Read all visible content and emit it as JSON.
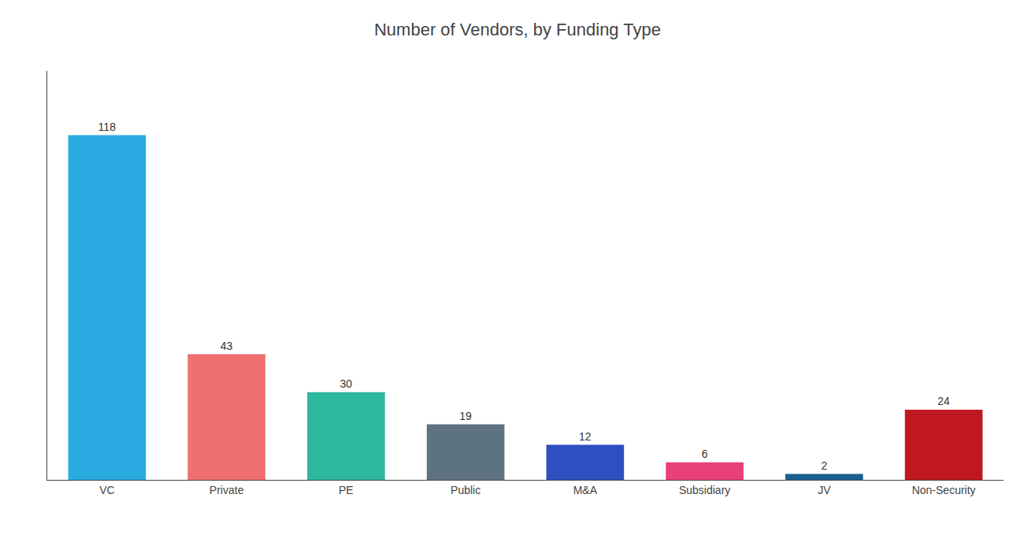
{
  "chart_data": {
    "type": "bar",
    "title": "Number of Vendors, by Funding Type",
    "categories": [
      "VC",
      "Private",
      "PE",
      "Public",
      "M&A",
      "Subsidiary",
      "JV",
      "Non-Security"
    ],
    "values": [
      118,
      43,
      30,
      19,
      12,
      6,
      2,
      24
    ],
    "colors": [
      "#29ABE2",
      "#F07070",
      "#2DB8A0",
      "#5E7380",
      "#2E4FC0",
      "#E8407A",
      "#1A6090",
      "#C01820"
    ],
    "ylim": [
      0,
      140
    ],
    "grid": false,
    "data_labels": true,
    "tick_labels": "x"
  }
}
